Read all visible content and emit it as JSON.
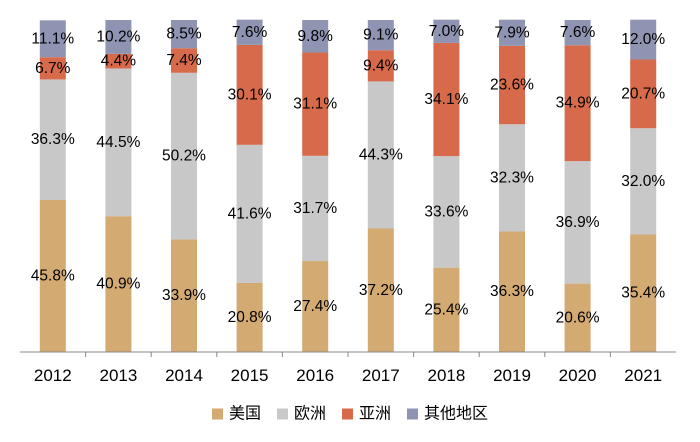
{
  "chart_data": {
    "type": "bar",
    "stacked": true,
    "normalized": true,
    "categories": [
      "2012",
      "2013",
      "2014",
      "2015",
      "2016",
      "2017",
      "2018",
      "2019",
      "2020",
      "2021"
    ],
    "series": [
      {
        "name": "美国",
        "color": "#D4AA73",
        "values": [
          45.8,
          40.9,
          33.9,
          20.8,
          27.4,
          37.2,
          25.4,
          36.3,
          20.6,
          35.4
        ],
        "labels": [
          "45.8%",
          "40.9%",
          "33.9%",
          "20.8%",
          "27.4%",
          "37.2%",
          "25.4%",
          "36.3%",
          "20.6%",
          "35.4%"
        ]
      },
      {
        "name": "欧洲",
        "color": "#C8C8C8",
        "values": [
          36.3,
          44.5,
          50.2,
          41.6,
          31.7,
          44.3,
          33.6,
          32.3,
          36.9,
          32.0
        ],
        "labels": [
          "36.3%",
          "44.5%",
          "50.2%",
          "41.6%",
          "31.7%",
          "44.3%",
          "33.6%",
          "32.3%",
          "36.9%",
          "32.0%"
        ]
      },
      {
        "name": "亚洲",
        "color": "#D66A4A",
        "values": [
          6.7,
          4.4,
          7.4,
          30.1,
          31.1,
          9.4,
          34.1,
          23.6,
          34.9,
          20.7
        ],
        "labels": [
          "6.7%",
          "4.4%",
          "7.4%",
          "30.1%",
          "31.1%",
          "9.4%",
          "34.1%",
          "23.6%",
          "34.9%",
          "20.7%"
        ]
      },
      {
        "name": "其他地区",
        "color": "#8F94B2",
        "values": [
          11.1,
          10.2,
          8.5,
          7.6,
          9.8,
          9.1,
          7.0,
          7.9,
          7.6,
          12.0
        ],
        "labels": [
          "11.1%",
          "10.2%",
          "8.5%",
          "7.6%",
          "9.8%",
          "9.1%",
          "7.0%",
          "7.9%",
          "7.6%",
          "12.0%"
        ]
      }
    ],
    "ylim": [
      0,
      100
    ],
    "title": "",
    "xlabel": "",
    "ylabel": "",
    "grid": false,
    "legend": "bottom"
  }
}
